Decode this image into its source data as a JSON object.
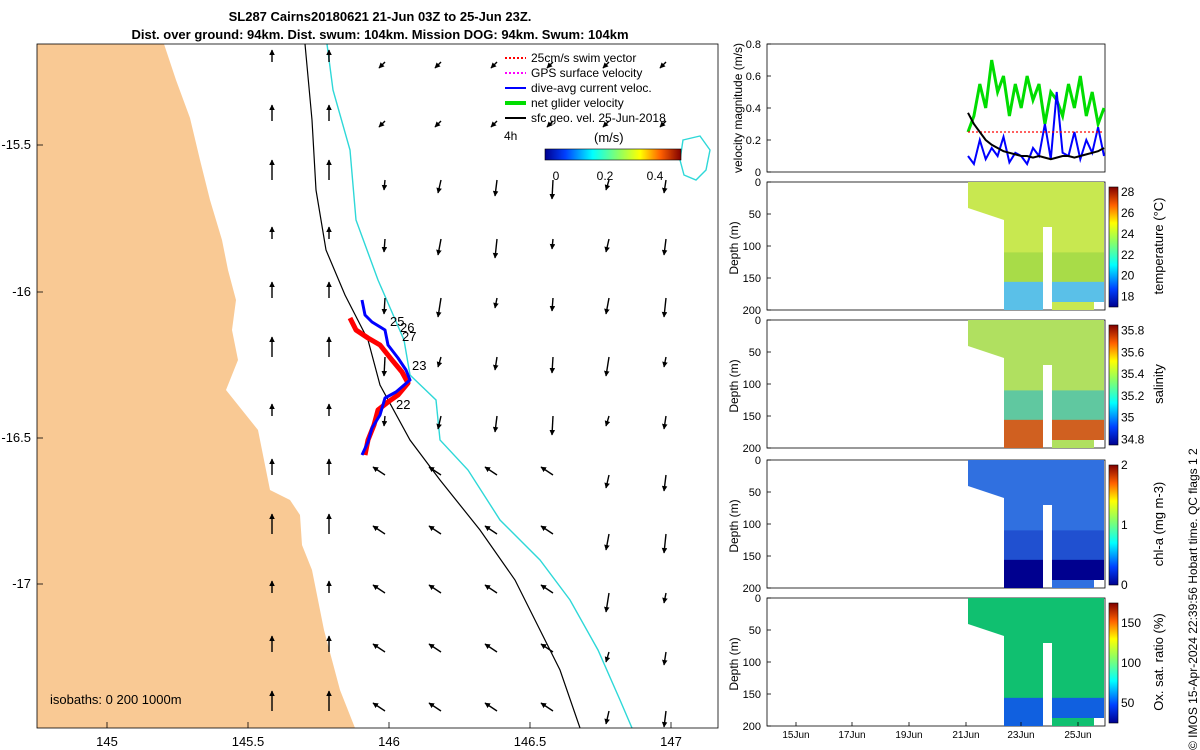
{
  "header": {
    "title_line1": "SL287 Cairns20180621 21-Jun 03Z to 25-Jun 23Z.",
    "title_line2": "Dist. over ground: 94km. Dist. swum: 104km. Mission DOG: 94km. Swum: 104km"
  },
  "map": {
    "legend": [
      {
        "label": "25cm/s swim vector",
        "color": "#ff0000"
      },
      {
        "label": "GPS surface velocity",
        "color": "#ff00ff"
      },
      {
        "label": "dive-avg current veloc.",
        "color": "#0000ff"
      },
      {
        "label": "net glider velocity",
        "color": "#00dd00"
      },
      {
        "label": "sfc geo. vel. 25-Jun-2018",
        "color": "#000000"
      }
    ],
    "label_4h": "4h",
    "colorbar_label": "(m/s)",
    "colorbar_ticks": [
      "0",
      "0.2",
      "0.4"
    ],
    "isobaths_label": "isobaths: 0   200  1000m",
    "lon_ticks": [
      "145",
      "145.5",
      "146",
      "146.5",
      "147"
    ],
    "lat_ticks": [
      "-15.5",
      "-16",
      "-16.5",
      "-17"
    ],
    "day_labels": [
      "22",
      "23",
      "25",
      "26",
      "27"
    ],
    "colors": {
      "land": "#f9c994",
      "track_red": "#ff0000",
      "track_blue": "#0000ff",
      "isobath_200": "#000000",
      "isobath_1000": "#2ed8d8"
    }
  },
  "chart_data": [
    {
      "type": "line",
      "title": "Velocity magnitude",
      "ylabel": "velocity magnitude (m/s)",
      "ylim": [
        0,
        0.8
      ],
      "yticks": [
        "0",
        "0.2",
        "0.4",
        "0.6",
        "0.8"
      ],
      "series": [
        {
          "name": "net glider velocity",
          "color": "#00dd00",
          "values": [
            0.25,
            0.35,
            0.55,
            0.4,
            0.7,
            0.5,
            0.6,
            0.35,
            0.55,
            0.4,
            0.6,
            0.45,
            0.55,
            0.3,
            0.5,
            0.45,
            0.35,
            0.55,
            0.4,
            0.6,
            0.35,
            0.5,
            0.3,
            0.4
          ]
        },
        {
          "name": "dive-avg current veloc.",
          "color": "#0000ff",
          "values": [
            0.1,
            0.05,
            0.2,
            0.08,
            0.15,
            0.1,
            0.22,
            0.06,
            0.12,
            0.1,
            0.05,
            0.15,
            0.1,
            0.3,
            0.08,
            0.5,
            0.12,
            0.1,
            0.25,
            0.08,
            0.2,
            0.12,
            0.28,
            0.1
          ]
        },
        {
          "name": "swim vector",
          "color": "#ff0000",
          "values": [
            0.25,
            0.25,
            0.25,
            0.25,
            0.25,
            0.25,
            0.25,
            0.25,
            0.25,
            0.25,
            0.25,
            0.25,
            0.25,
            0.25,
            0.25,
            0.25,
            0.25,
            0.25,
            0.25,
            0.25,
            0.25,
            0.25,
            0.25,
            0.25
          ]
        },
        {
          "name": "sfc geo. vel.",
          "color": "#000000",
          "values": [
            0.37,
            0.3,
            0.25,
            0.2,
            0.17,
            0.15,
            0.13,
            0.12,
            0.11,
            0.1,
            0.1,
            0.09,
            0.1,
            0.09,
            0.08,
            0.09,
            0.1,
            0.1,
            0.09,
            0.1,
            0.11,
            0.12,
            0.13,
            0.15
          ]
        }
      ]
    },
    {
      "type": "heatmap",
      "variable": "temperature",
      "ylabel": "Depth (m)",
      "clabel": "temperature (°C)",
      "yticks": [
        "0",
        "50",
        "100",
        "150",
        "200"
      ],
      "cticks": [
        "18",
        "20",
        "22",
        "24",
        "26",
        "28"
      ],
      "crange": [
        17,
        28.5
      ]
    },
    {
      "type": "heatmap",
      "variable": "salinity",
      "ylabel": "Depth (m)",
      "clabel": "salinity",
      "yticks": [
        "0",
        "50",
        "100",
        "150",
        "200"
      ],
      "cticks": [
        "34.8",
        "35",
        "35.2",
        "35.4",
        "35.6",
        "35.8"
      ],
      "crange": [
        34.75,
        35.85
      ]
    },
    {
      "type": "heatmap",
      "variable": "chl-a",
      "ylabel": "Depth (m)",
      "clabel": "chl-a (mg m-3)",
      "yticks": [
        "0",
        "50",
        "100",
        "150",
        "200"
      ],
      "cticks": [
        "0",
        "1",
        "2"
      ],
      "crange": [
        0,
        2
      ]
    },
    {
      "type": "heatmap",
      "variable": "oxygen saturation",
      "ylabel": "Depth (m)",
      "clabel": "Ox. sat. ratio (%)",
      "yticks": [
        "0",
        "50",
        "100",
        "150",
        "200"
      ],
      "cticks": [
        "50",
        "100",
        "150"
      ],
      "crange": [
        25,
        175
      ],
      "xticks": [
        "15Jun",
        "17Jun",
        "19Jun",
        "21Jun",
        "23Jun",
        "25Jun"
      ]
    }
  ],
  "credit": "© IMOS 15-Apr-2024 22:39:56 Hobart time. QC flags 1  2"
}
